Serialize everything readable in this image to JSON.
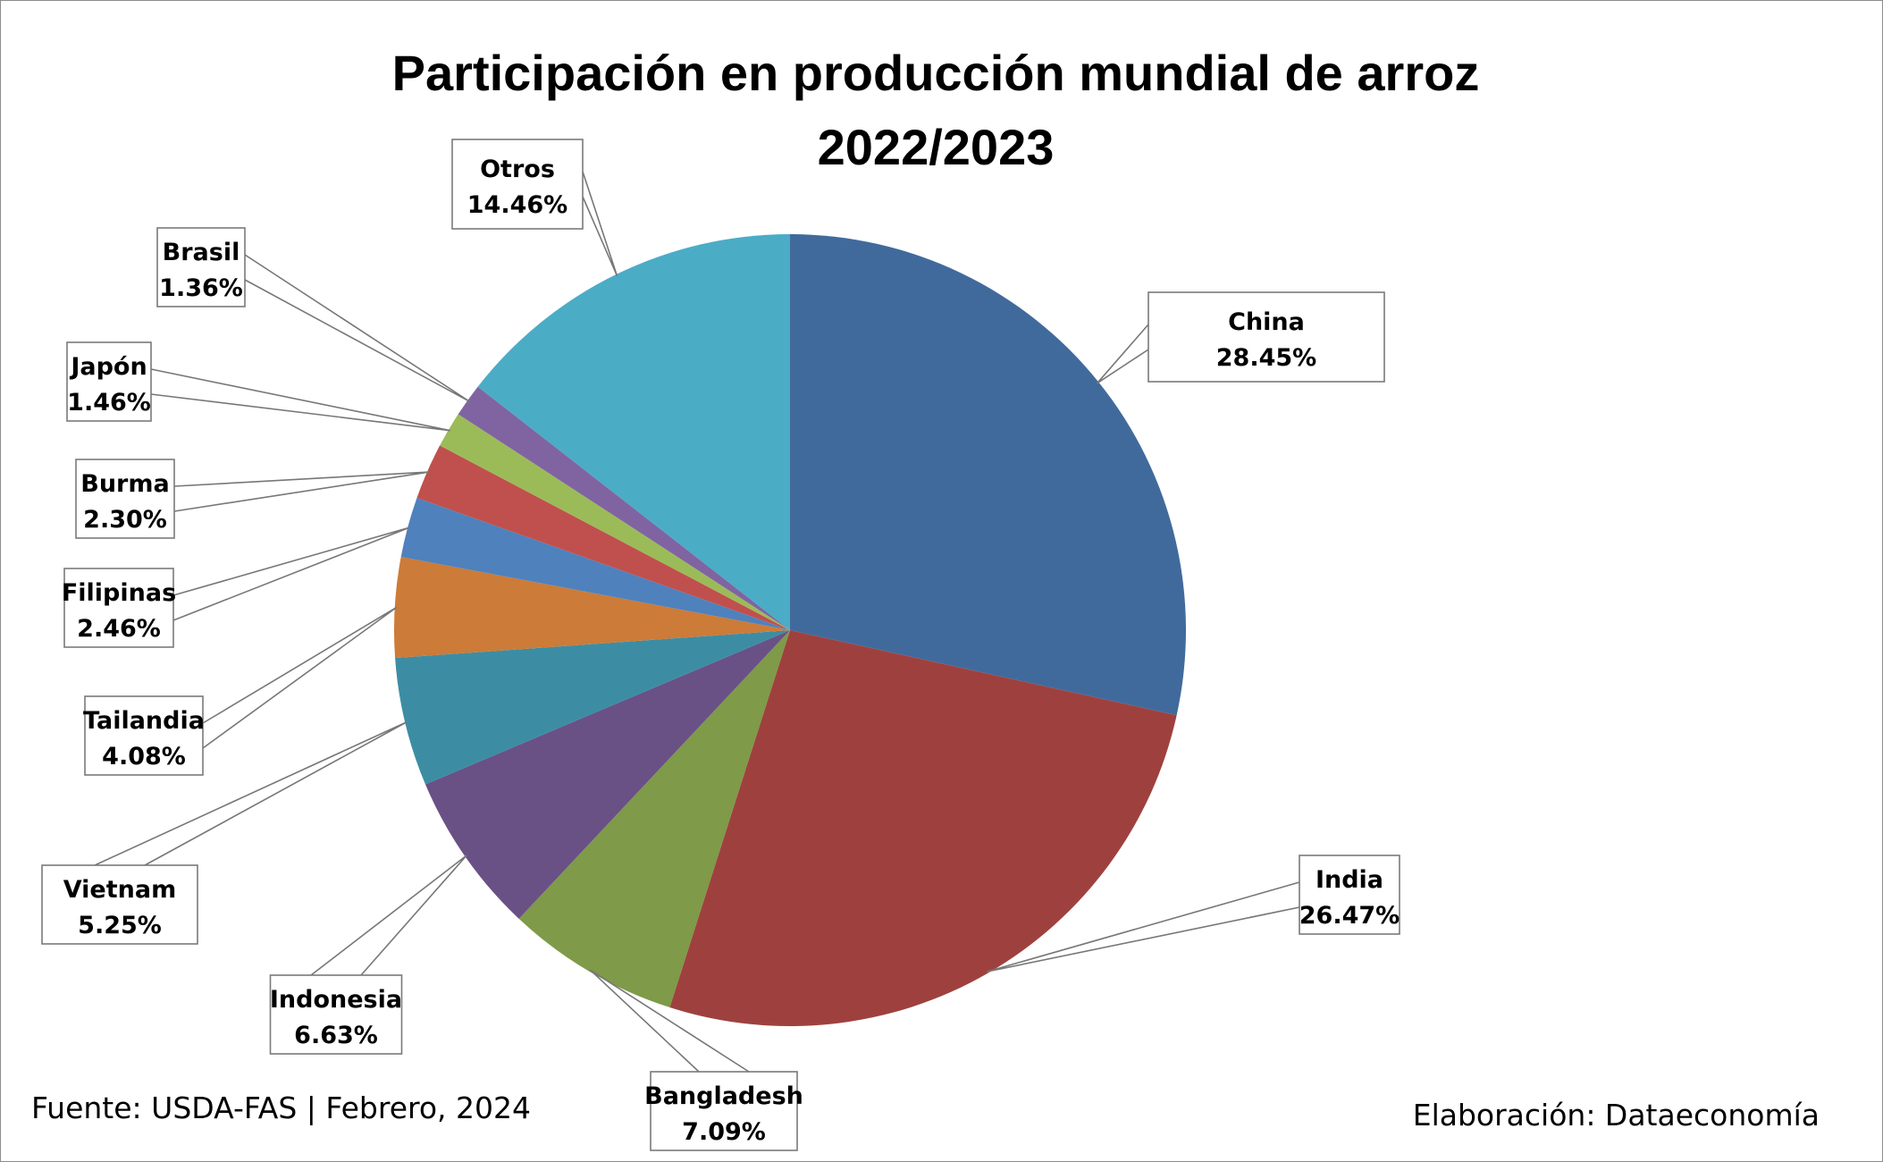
{
  "chart_data": {
    "type": "pie",
    "title": "Participación en producción mundial de arroz",
    "subtitle": "2022/2023",
    "start_angle_deg": 0,
    "direction": "clockwise",
    "slices": [
      {
        "label": "China",
        "value": 28.45,
        "text": "28.45%",
        "color": "#416A9C"
      },
      {
        "label": "India",
        "value": 26.47,
        "text": "26.47%",
        "color": "#9E413E"
      },
      {
        "label": "Bangladesh",
        "value": 7.09,
        "text": "7.09%",
        "color": "#7F9A48"
      },
      {
        "label": "Indonesia",
        "value": 6.63,
        "text": "6.63%",
        "color": "#695185"
      },
      {
        "label": "Vietnam",
        "value": 5.25,
        "text": "5.25%",
        "color": "#3C8DA3"
      },
      {
        "label": "Tailandia",
        "value": 4.08,
        "text": "4.08%",
        "color": "#CC7B38"
      },
      {
        "label": "Filipinas",
        "value": 2.46,
        "text": "2.46%",
        "color": "#4F81BD"
      },
      {
        "label": "Burma",
        "value": 2.3,
        "text": "2.30%",
        "color": "#C0504D"
      },
      {
        "label": "Japón",
        "value": 1.46,
        "text": "1.46%",
        "color": "#9BBB59"
      },
      {
        "label": "Brasil",
        "value": 1.36,
        "text": "1.36%",
        "color": "#8064A2"
      },
      {
        "label": "Otros",
        "value": 14.46,
        "text": "14.46%",
        "color": "#4BACC6"
      }
    ]
  },
  "footer": {
    "source": "Fuente: USDA-FAS | Febrero, 2024",
    "credit": "Elaboración: Dataeconomía"
  }
}
